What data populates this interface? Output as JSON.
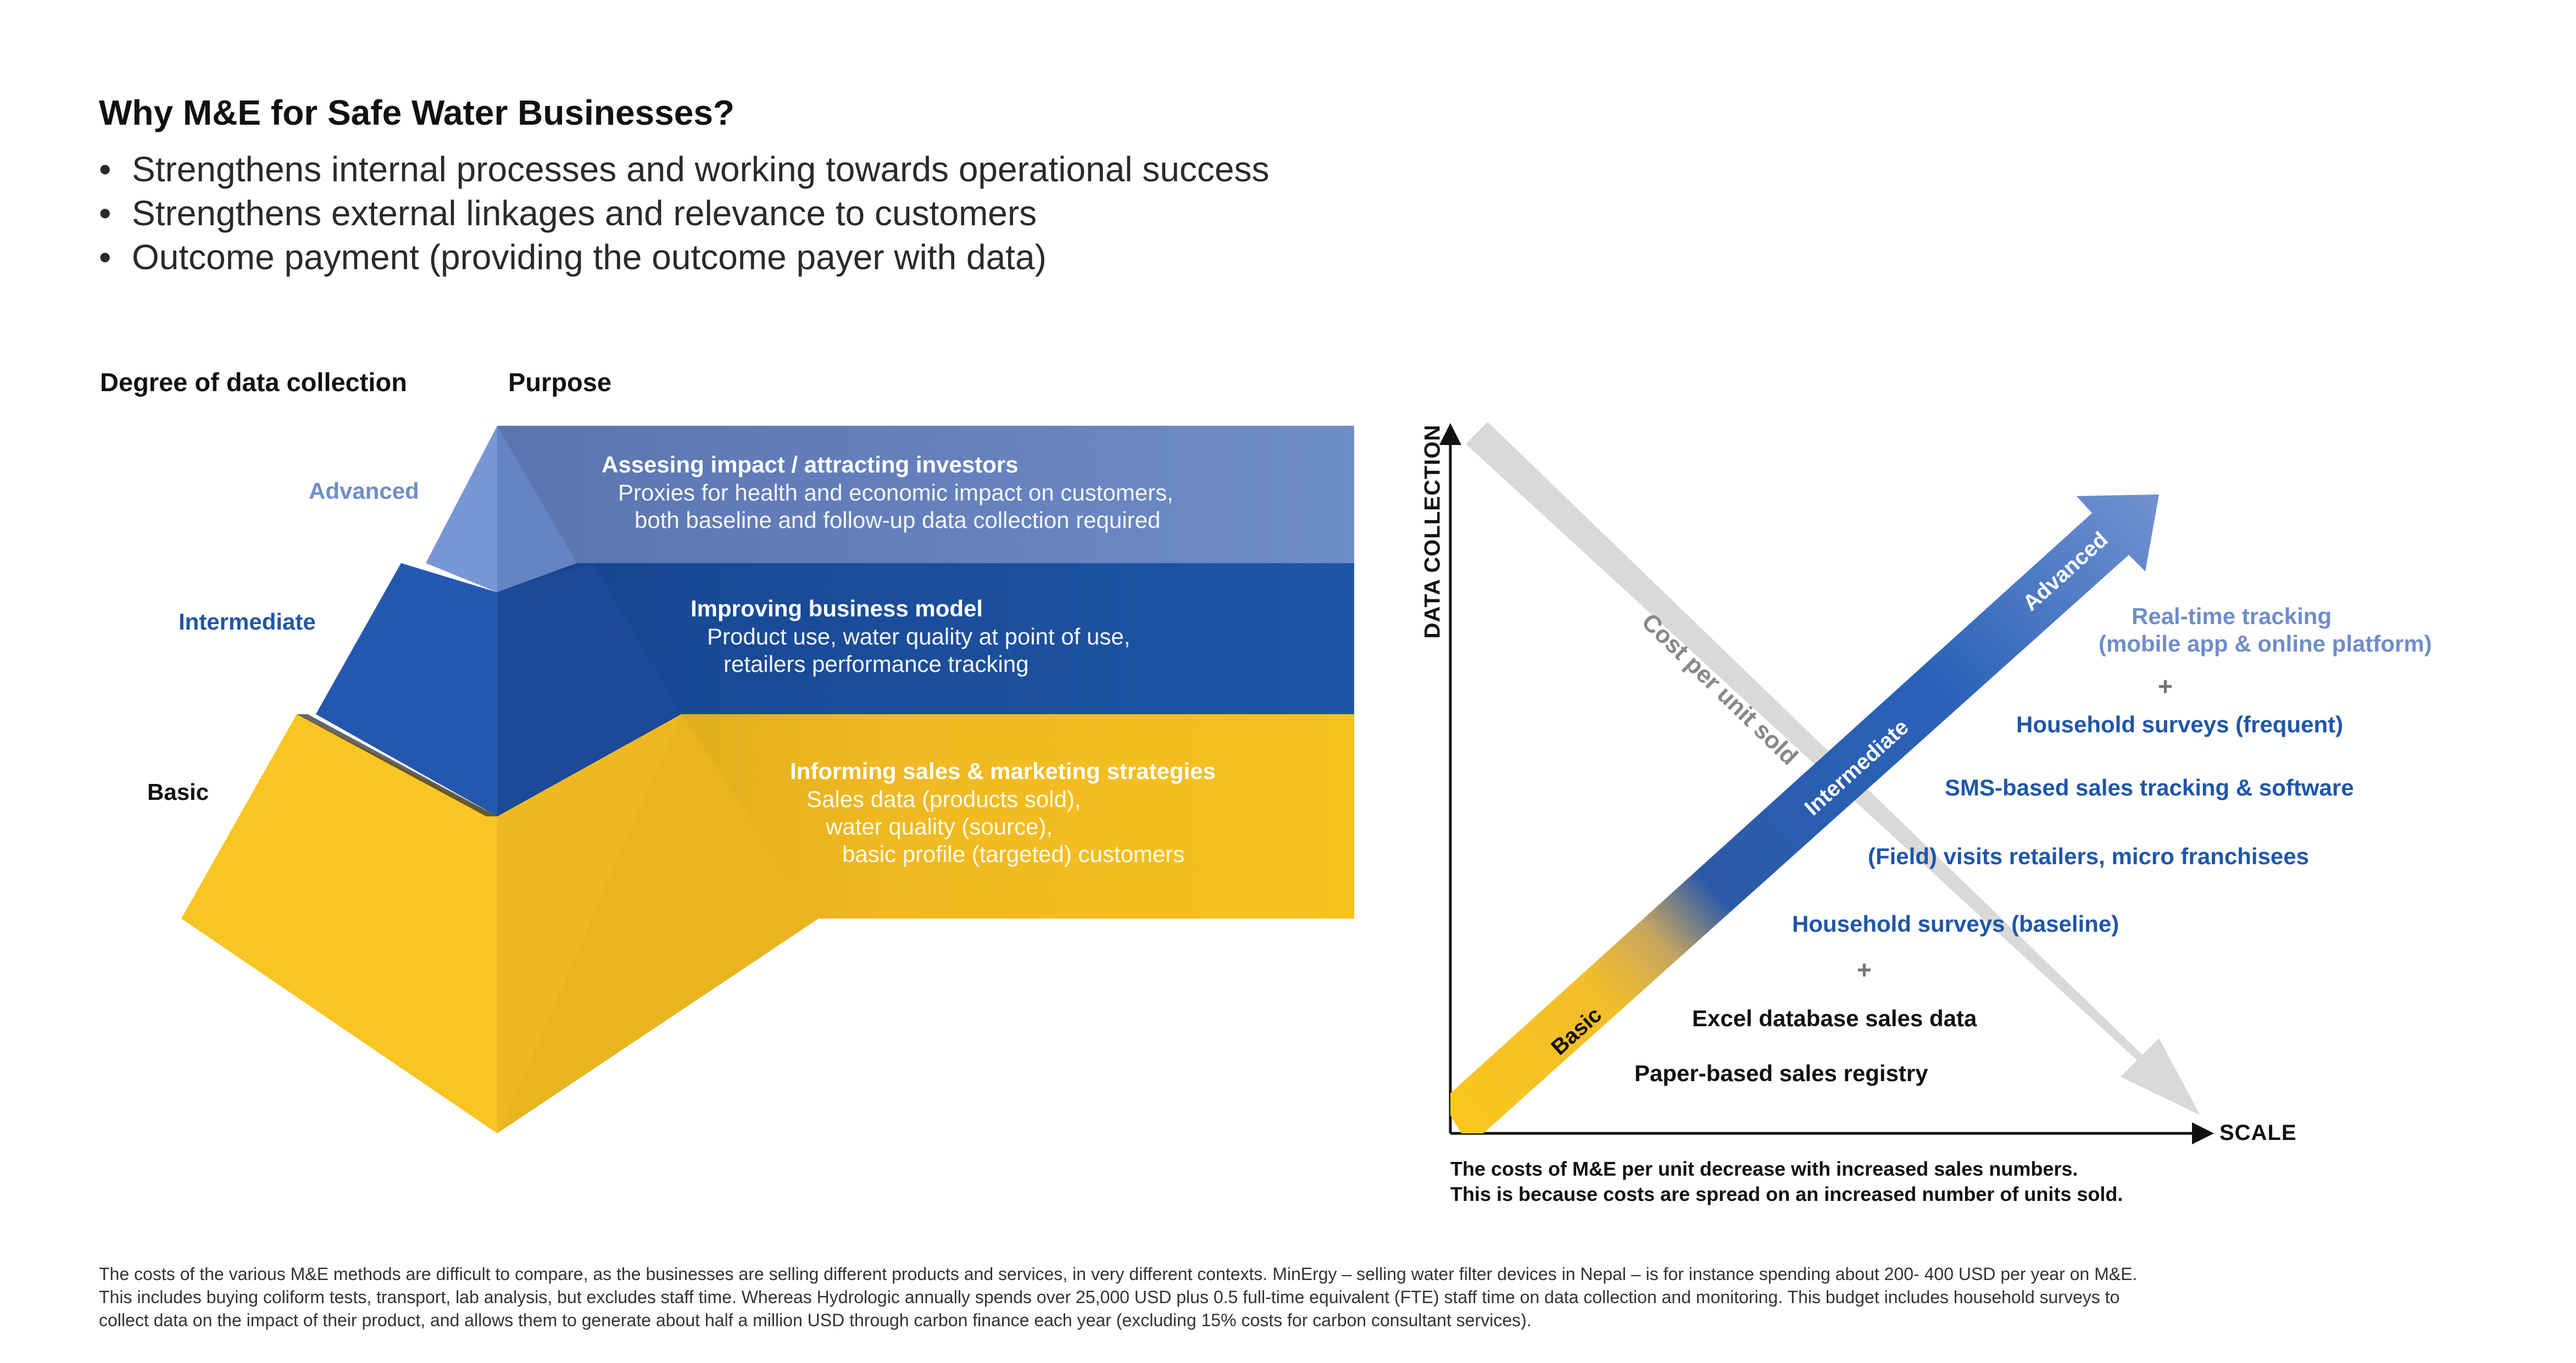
{
  "header": {
    "title": "Why M&E for Safe Water Businesses?",
    "bullets": [
      "Strengthens internal processes and working towards operational success",
      "Strengthens external linkages and relevance to customers",
      "Outcome payment (providing the outcome payer with data)"
    ],
    "bullet_glyph": "•"
  },
  "pyramid": {
    "col_degree": "Degree of data collection",
    "col_purpose": "Purpose",
    "levels": [
      {
        "name": "Advanced",
        "color": "#6f8dc9",
        "title": "Assesing impact / attracting investors",
        "lines": [
          "Proxies for health and economic impact on customers,",
          "both baseline and follow-up data collection required"
        ]
      },
      {
        "name": "Intermediate",
        "color": "#1f56a8",
        "title": "Improving business model",
        "lines": [
          "Product use, water quality at point of use,",
          "retailers performance tracking"
        ]
      },
      {
        "name": "Basic",
        "color": "#f5bf1f",
        "title": "Informing sales & marketing strategies",
        "lines": [
          "Sales data (products sold),",
          "water quality (source),",
          "basic profile (targeted) customers"
        ]
      }
    ]
  },
  "scale_chart": {
    "y_axis_label": "DATA COLLECTION",
    "x_axis_label": "SCALE",
    "cost_arrow_label": "Cost per unit sold",
    "stage_labels": [
      "Basic",
      "Intermediate",
      "Advanced"
    ],
    "plus_glyph": "+",
    "methods": {
      "realtime_1": "Real-time tracking",
      "realtime_2": "(mobile app & online platform)",
      "hh_frequent": "Household surveys (frequent)",
      "sms": "SMS-based sales tracking & software",
      "field": "(Field) visits retailers, micro franchisees",
      "hh_baseline": "Household surveys (baseline)",
      "excel": "Excel database sales data",
      "paper": "Paper-based sales registry"
    },
    "note": [
      "The costs of M&E per unit decrease with increased sales numbers.",
      "This is because costs are spread on an increased number of units sold."
    ],
    "colors": {
      "advanced": "#6f8dc9",
      "intermediate": "#1f56a8",
      "basic": "#f5bf1f",
      "cost": "#d6d6d6"
    }
  },
  "footer": [
    "The costs of the various M&E methods are difficult to compare, as the businesses are selling different products and services, in very different contexts. MinErgy – selling water filter devices in Nepal – is for instance spending about 200- 400 USD per year on M&E.",
    "This includes buying coliform tests, transport, lab analysis, but excludes staff time. Whereas Hydrologic annually spends over 25,000 USD plus 0.5 full-time equivalent (FTE) staff time on data collection and monitoring. This budget includes household surveys to",
    "collect data on the impact of their product, and allows them to generate about half a million USD through carbon finance each year (excluding 15% costs for carbon consultant services)."
  ]
}
